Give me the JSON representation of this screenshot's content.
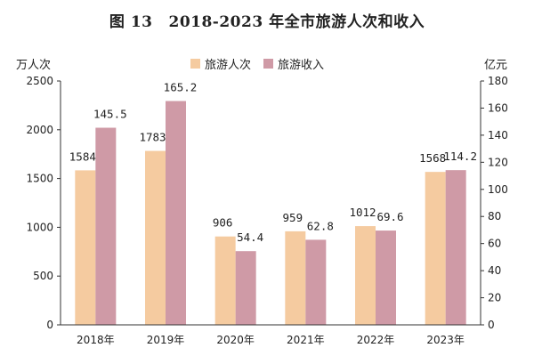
{
  "title": {
    "fig": "图 13",
    "text": "2018-2023 年全市旅游人次和收入"
  },
  "left_unit": "万人次",
  "right_unit": "亿元",
  "colors": {
    "visitors": "#f5cba0",
    "revenue": "#cf9aa6",
    "axis": "#333333"
  },
  "chart_data": {
    "type": "bar",
    "title": "2018-2023 年全市旅游人次和收入",
    "categories": [
      "2018年",
      "2019年",
      "2020年",
      "2021年",
      "2022年",
      "2023年"
    ],
    "series": [
      {
        "name": "旅游人次",
        "axis": "left",
        "values": [
          1584,
          1783,
          906,
          959,
          1012,
          1568
        ],
        "labels": [
          "1584",
          "1783",
          "906",
          "959",
          "1012",
          "1568"
        ]
      },
      {
        "name": "旅游收入",
        "axis": "right",
        "values": [
          145.5,
          165.2,
          54.4,
          62.8,
          69.6,
          114.2
        ],
        "labels": [
          "145.5",
          "165.2",
          "54.4",
          "62.8",
          "69.6",
          "114.2"
        ]
      }
    ],
    "ylabel": "万人次",
    "y2label": "亿元",
    "ylim": [
      0,
      2500
    ],
    "y2lim": [
      0,
      180
    ],
    "yticks": [
      "0",
      "500",
      "1000",
      "1500",
      "2000",
      "2500"
    ],
    "y2ticks": [
      "0",
      "20",
      "40",
      "60",
      "80",
      "100",
      "120",
      "140",
      "160",
      "180"
    ],
    "grid": false,
    "legend_position": "top-center"
  }
}
